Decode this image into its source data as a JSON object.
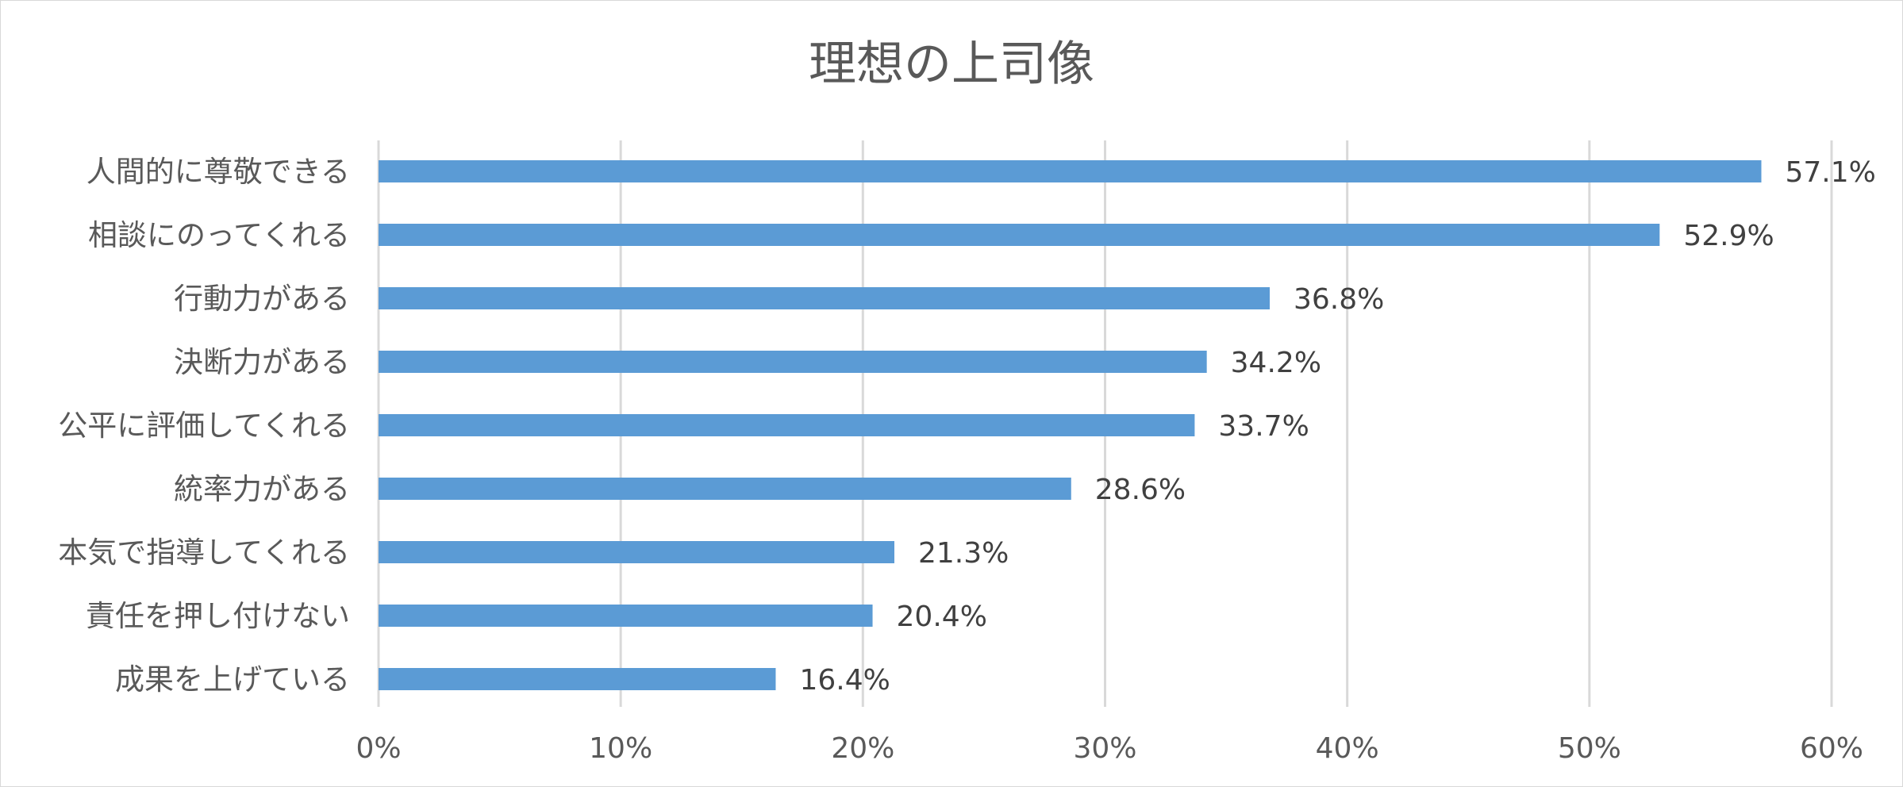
{
  "chart_data": {
    "type": "bar",
    "orientation": "horizontal",
    "title": "理想の上司像",
    "categories": [
      "人間的に尊敬できる",
      "相談にのってくれる",
      "行動力がある",
      "決断力がある",
      "公平に評価してくれる",
      "統率力がある",
      "本気で指導してくれる",
      "責任を押し付けない",
      "成果を上げている"
    ],
    "values": [
      57.1,
      52.9,
      36.8,
      34.2,
      33.7,
      28.6,
      21.3,
      20.4,
      16.4
    ],
    "value_labels": [
      "57.1%",
      "52.9%",
      "36.8%",
      "34.2%",
      "33.7%",
      "28.6%",
      "21.3%",
      "20.4%",
      "16.4%"
    ],
    "xlim": [
      0,
      60
    ],
    "xticks": [
      0,
      10,
      20,
      30,
      40,
      50,
      60
    ],
    "xtick_labels": [
      "0%",
      "10%",
      "20%",
      "30%",
      "40%",
      "50%",
      "60%"
    ],
    "grid": true,
    "legend": "none",
    "bar_color": "#5b9bd5",
    "grid_color": "#d9d9d9",
    "text_color": "#595959"
  }
}
